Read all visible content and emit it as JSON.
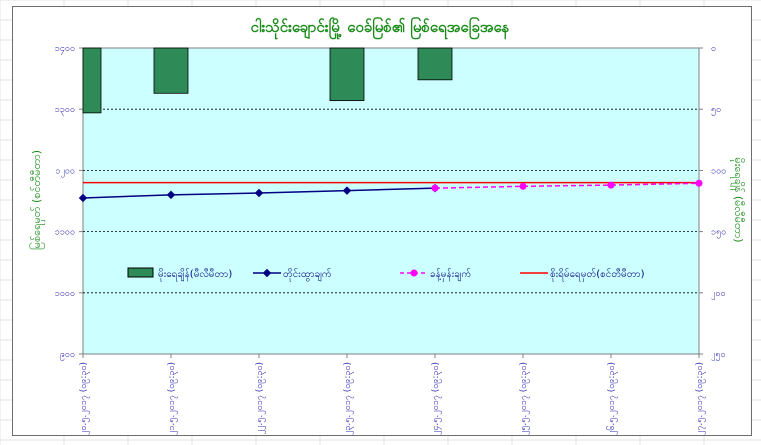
{
  "chart_data": {
    "type": "line",
    "title": "ငါးသိုင်းချောင်းမြို့ ဝေခ်မြစ်၏ မြစ်ရေအခြေအနေ",
    "ylabel_left": "မြစ်ရေမှတ် (စင်တီမီတာ)",
    "ylabel_right": "မိုးရေချိန် (မီလီမီတာ)",
    "ylim_left": [
      900,
      1400
    ],
    "yticks_left": [
      "၁၄၀၀",
      "၁၃၀၀",
      "၁၂၀၀",
      "၁၁၀၀",
      "၁၀၀၀",
      "၉၀၀"
    ],
    "ylim_right": [
      0,
      250
    ],
    "yticks_right": [
      "၀",
      "၅၀",
      "၁၀၀",
      "၁၅၀",
      "၂၀၀",
      "၂၅၀"
    ],
    "categories": [
      "၂၀.၅.၂၀၁၇ (၀၉:၃၀)",
      "၂၁.၅.၂၀၁၇ (၀၉:၃၀)",
      "၂၂.၅.၂၀၁၇ (၀၉:၃၀)",
      "၂၃.၅.၂၀၁၇ (၀၉:၃၀)",
      "၂၄.၅.၂၀၁၇ (၀၉:၃၀)",
      "၂၅.၅.၂၀၁၇ (၀၉:၃၀)",
      "၂၆.၅.၂၀၁၇ (၀၉:၃၀)",
      "၂၇.၅.၂၀၁၇ (၀၉:၃၀)"
    ],
    "series": [
      {
        "name": "မိုးရေချိန်(မီလီမီတာ)",
        "type": "bar",
        "axis": "right",
        "color": "#2e8b57",
        "values": [
          53,
          37,
          null,
          43,
          26,
          null,
          null,
          null
        ]
      },
      {
        "name": "တိုင်းထွာချက်",
        "type": "line",
        "axis": "left",
        "color": "#000080",
        "values": [
          1155,
          1160,
          1163,
          1167,
          1171,
          null,
          null,
          null
        ]
      },
      {
        "name": "ခန့်မှန်းချက်",
        "type": "line-dashed",
        "axis": "left",
        "color": "#ff00ff",
        "values": [
          null,
          null,
          null,
          null,
          1171,
          1174,
          1176,
          1179
        ]
      },
      {
        "name": "စိုးရိမ်ရေမှတ်(စင်တီမီတာ)",
        "type": "hline",
        "axis": "left",
        "color": "#ff0000",
        "value": 1180
      }
    ],
    "legend_position": "inside-lower",
    "grid": true
  }
}
